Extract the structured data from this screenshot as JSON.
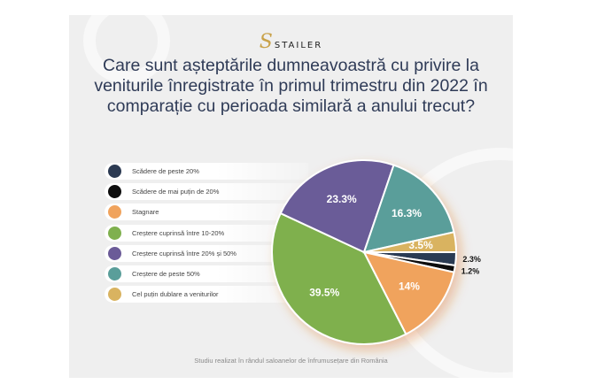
{
  "brand": {
    "mark": "S",
    "name": "STAILER"
  },
  "chart_data": {
    "type": "pie",
    "title": "Care sunt așteptările dumneavoastră cu privire la veniturile înregistrate în primul trimestru din 2022 în comparație cu perioada similară a anului trecut?",
    "categories": [
      "Scădere de peste 20%",
      "Scădere de mai puțin de 20%",
      "Stagnare",
      "Creștere cuprinsă între 10-20%",
      "Creștere cuprinsă între 20% și 50%",
      "Creștere de peste 50%",
      "Cel puțin dublare a veniturilor"
    ],
    "values": [
      2.3,
      1.2,
      14,
      39.5,
      23.3,
      16.3,
      3.5
    ],
    "labels": [
      "2.3%",
      "1.2%",
      "14%",
      "39.5%",
      "23.3%",
      "16.3%",
      "3.5%"
    ],
    "colors": [
      "#2c3a52",
      "#0d0d0d",
      "#f0a35d",
      "#7fb04e",
      "#6b5b98",
      "#5a9e9a",
      "#d9b360"
    ],
    "legend_position": "left"
  },
  "footer": "Studiu realizat în rândul saloanelor de înfrumusețare din România"
}
